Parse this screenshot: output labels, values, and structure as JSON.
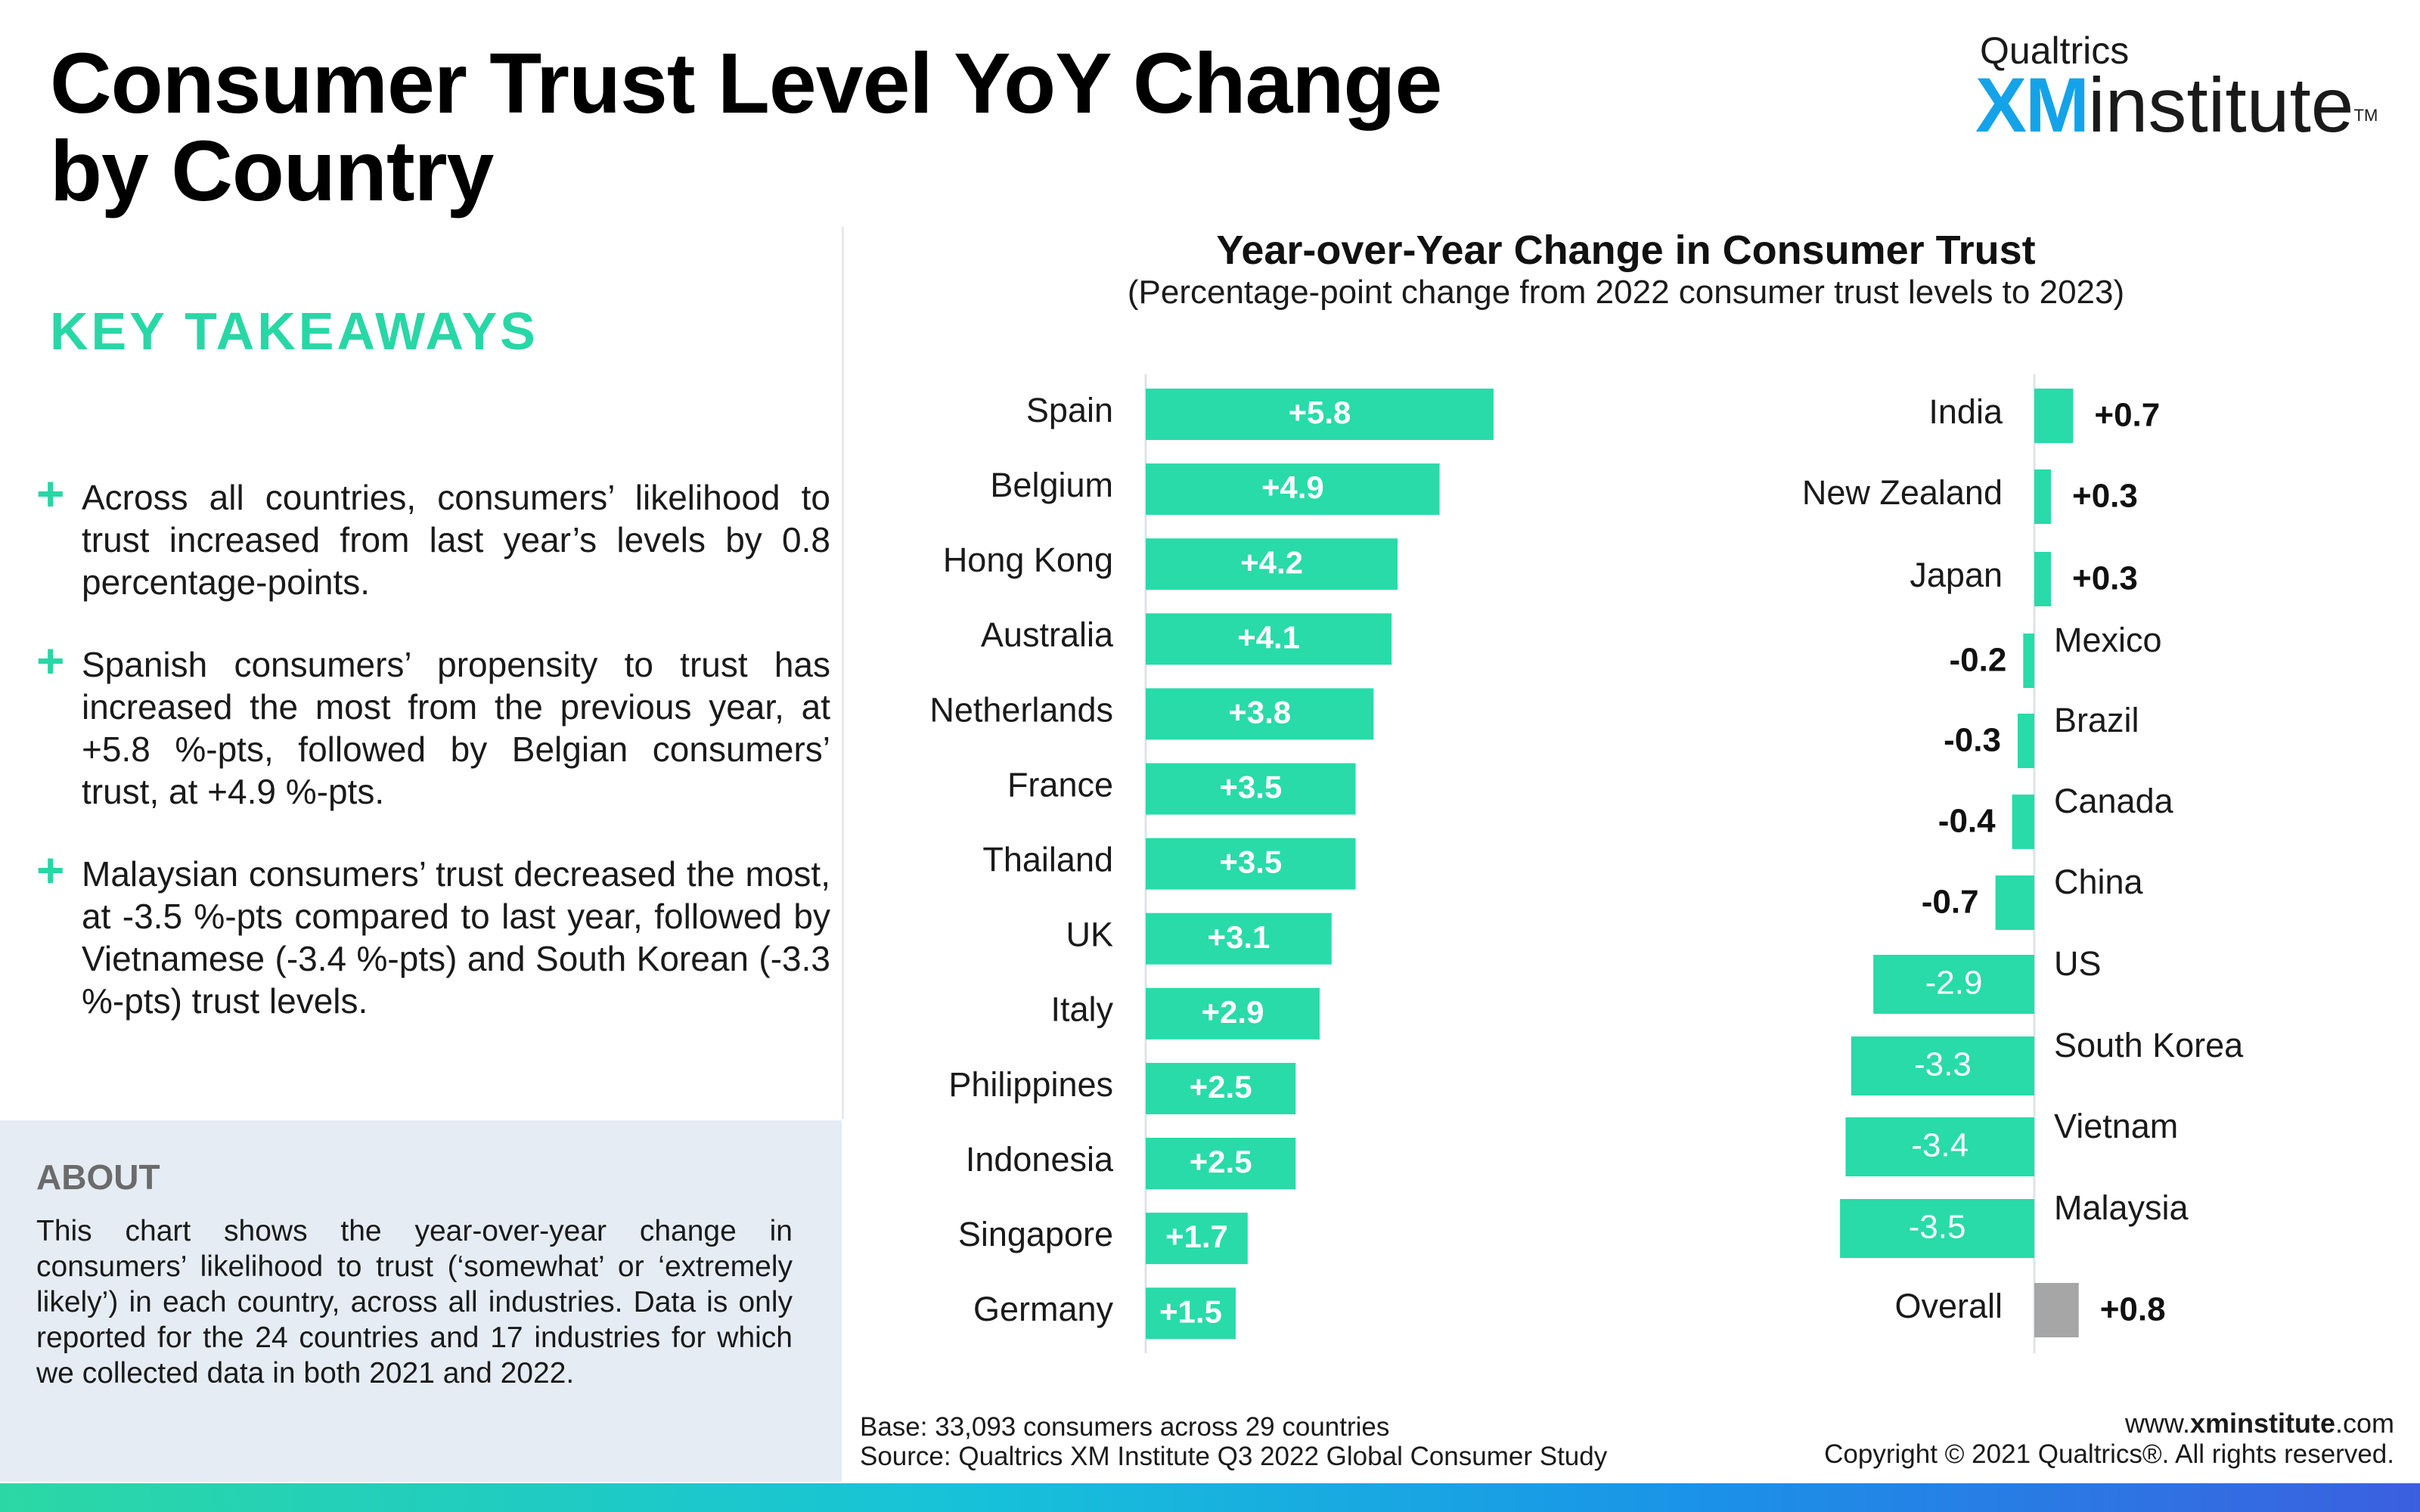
{
  "page": {
    "title": "Consumer Trust Level YoY Change by Country",
    "logo_top": "Qualtrics",
    "logo_xm": "XM",
    "logo_institute": "institute",
    "logo_tm": "TM"
  },
  "takeaways": {
    "heading": "KEY TAKEAWAYS",
    "items": [
      "Across all countries, consumers’ likelihood to trust increased from last year’s levels by 0.8 percentage-points.",
      "Spanish consumers’ propensity to trust has increased the most from the previous year, at +5.8 %-pts, followed by Belgian consumers’ trust, at +4.9 %-pts.",
      "Malaysian consumers’ trust decreased the most, at -3.5 %-pts compared to last year, followed by Vietnamese (-3.4 %-pts) and South Korean (-3.3 %-pts) trust levels."
    ]
  },
  "about": {
    "heading": "ABOUT",
    "text": "This chart shows the year-over-year change in consumers’ likelihood to trust (‘somewhat’ or ‘extremely likely’) in each country, across all industries. Data is only reported for the 24 countries and 17 industries for which we collected data in both 2021 and 2022."
  },
  "chart_data": {
    "type": "bar",
    "orientation": "horizontal",
    "title": "Year-over-Year Change in Consumer Trust",
    "subtitle": "(Percentage-point change from 2022 consumer trust levels to 2023)",
    "colors": {
      "bar": "#28dba9",
      "overall": "#a6a6a6",
      "inside_label": "#ffffff",
      "outside_label": "#111111"
    },
    "panels": [
      {
        "categories": [
          "Spain",
          "Belgium",
          "Hong Kong",
          "Australia",
          "Netherlands",
          "France",
          "Thailand",
          "UK",
          "Italy",
          "Philippines",
          "Indonesia",
          "Singapore",
          "Germany"
        ],
        "values": [
          5.8,
          4.9,
          4.2,
          4.1,
          3.8,
          3.5,
          3.5,
          3.1,
          2.9,
          2.5,
          2.5,
          1.7,
          1.5
        ],
        "labels": [
          "+5.8",
          "+4.9",
          "+4.2",
          "+4.1",
          "+3.8",
          "+3.5",
          "+3.5",
          "+3.1",
          "+2.9",
          "+2.5",
          "+2.5",
          "+1.7",
          "+1.5"
        ]
      },
      {
        "categories": [
          "India",
          "New Zealand",
          "Japan",
          "Mexico",
          "Brazil",
          "Canada",
          "China",
          "US",
          "South Korea",
          "Vietnam",
          "Malaysia",
          "Overall"
        ],
        "values": [
          0.7,
          0.3,
          0.3,
          -0.2,
          -0.3,
          -0.4,
          -0.7,
          -2.9,
          -3.3,
          -3.4,
          -3.5,
          0.8
        ],
        "labels": [
          "+0.7",
          "+0.3",
          "+0.3",
          "-0.2",
          "-0.3",
          "-0.4",
          "-0.7",
          "-2.9",
          "-3.3",
          "-3.4",
          "-3.5",
          "+0.8"
        ],
        "highlight": "Overall"
      }
    ]
  },
  "footer": {
    "base": "Base: 33,093 consumers across 29 countries",
    "source": "Source: Qualtrics XM Institute Q3 2022 Global Consumer Study",
    "url_prefix": "www.",
    "url_bold": "xminstitute",
    "url_suffix": ".com",
    "copyright": "Copyright © 2021 Qualtrics®. All rights reserved."
  }
}
